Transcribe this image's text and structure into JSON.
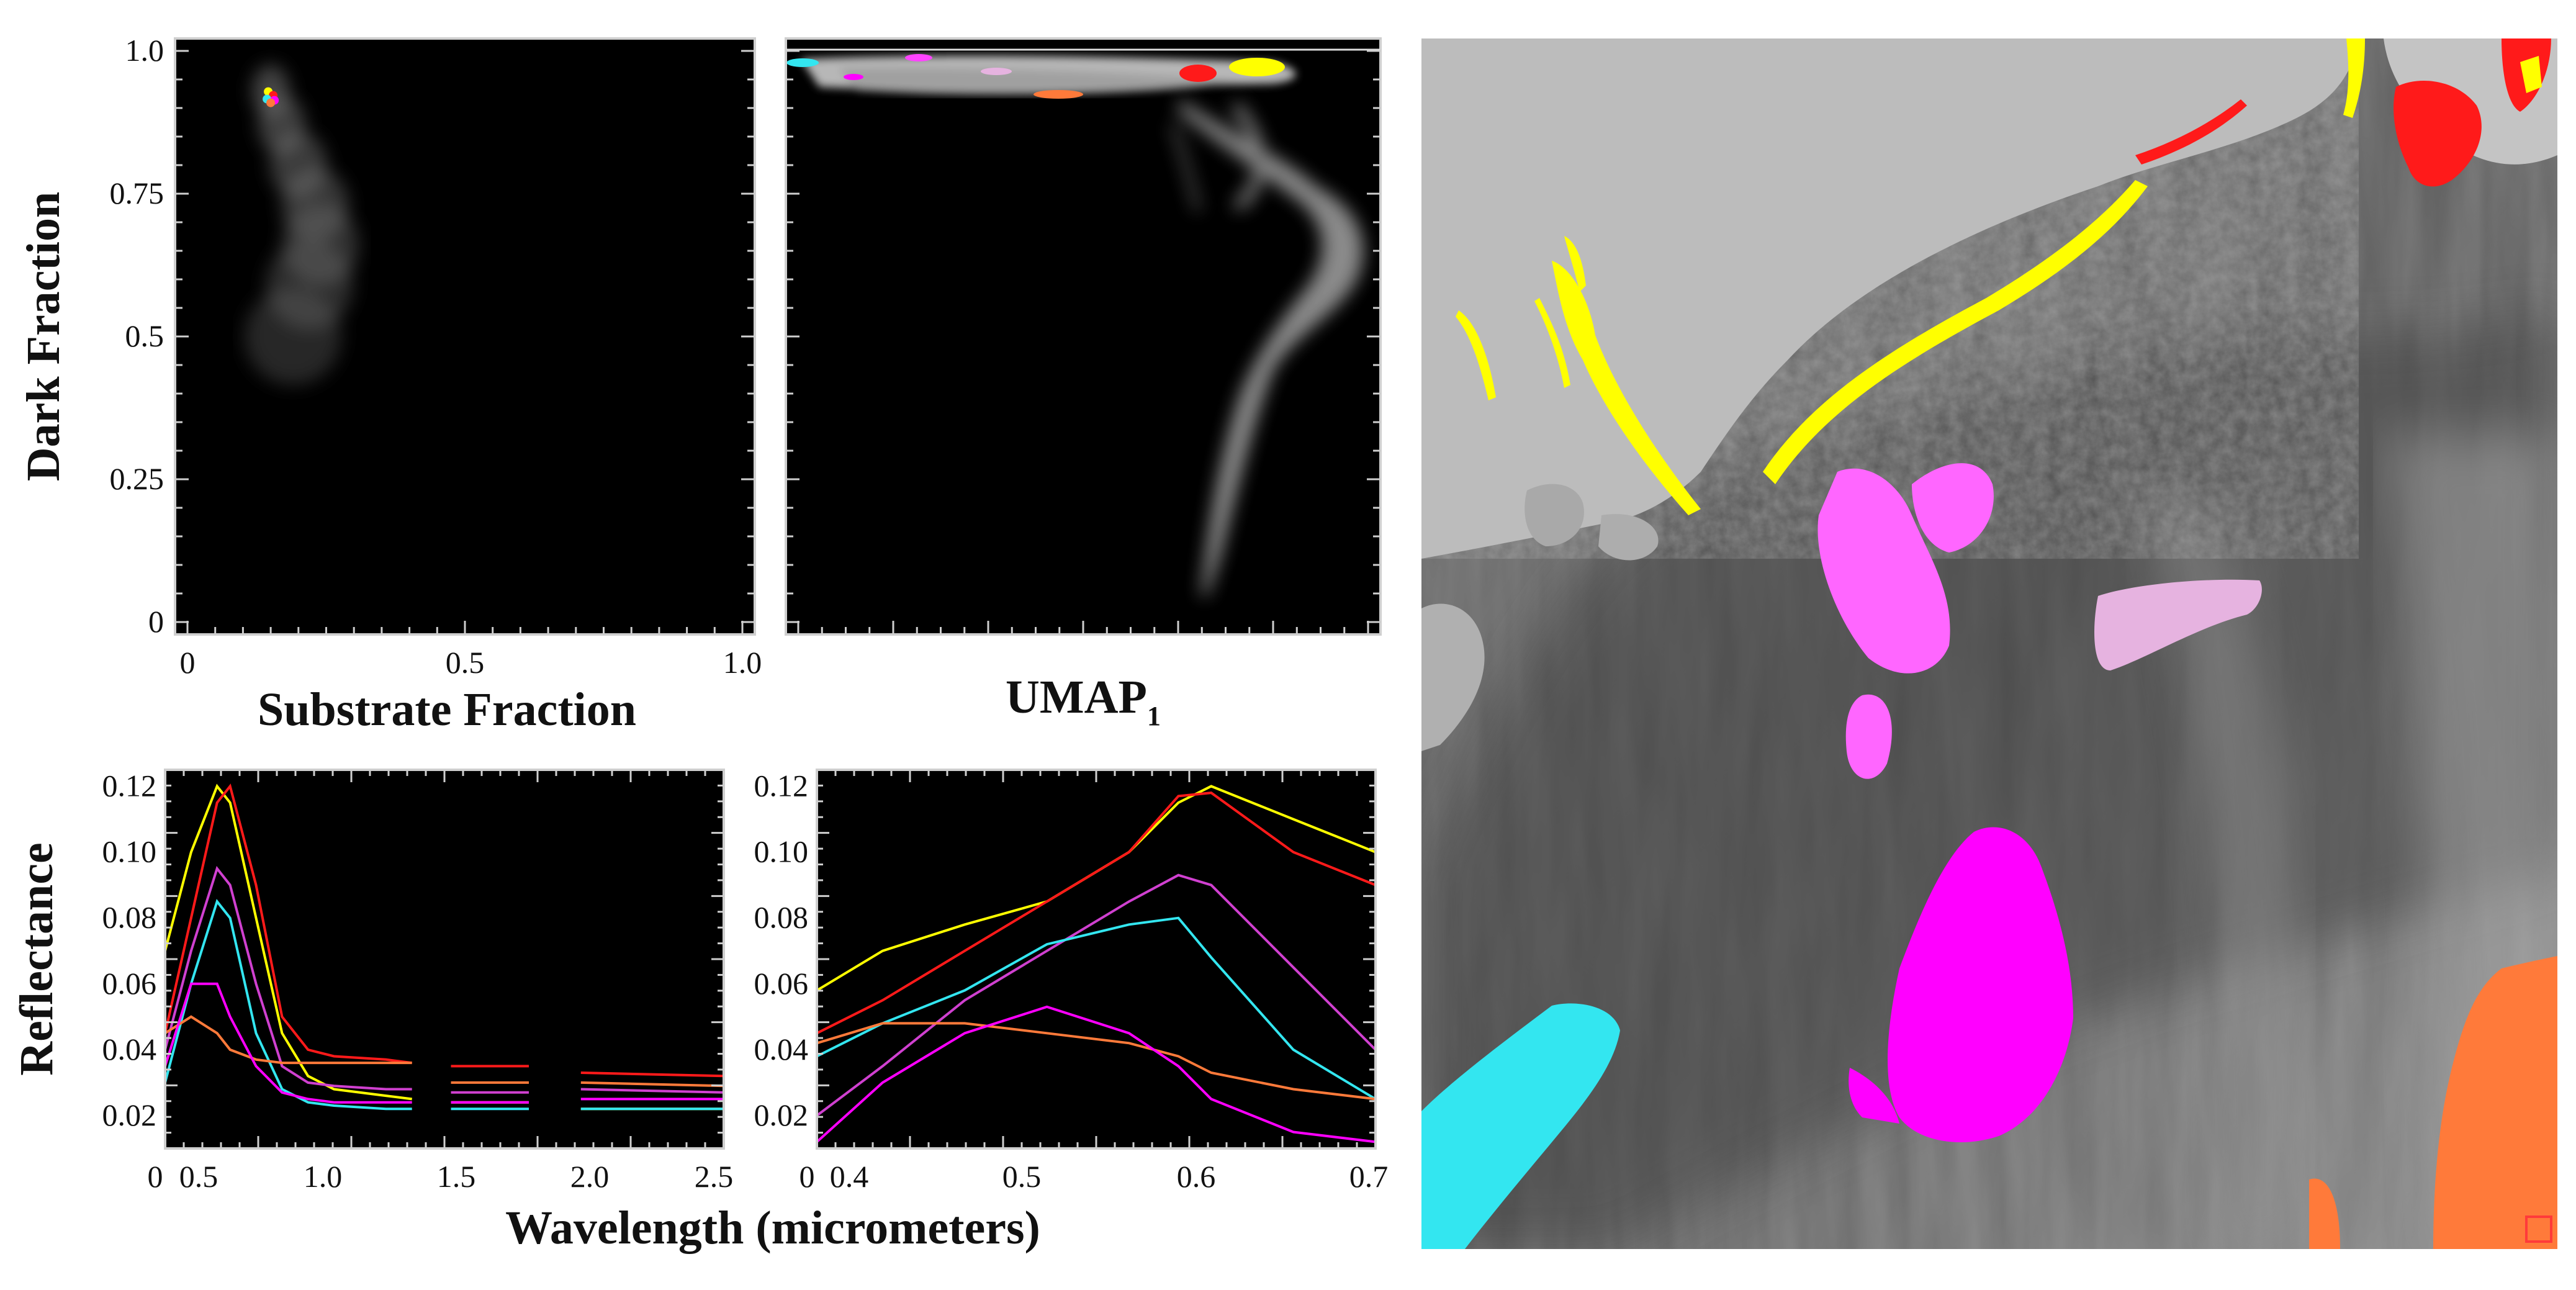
{
  "figure": {
    "panels": {
      "scatter_substrate": {
        "xlabel": "Substrate Fraction",
        "ylabel": "Dark Fraction",
        "xticks": [
          "0",
          "0.5",
          "1.0"
        ],
        "yticks": [
          "0",
          "0.25",
          "0.5",
          "0.75",
          "1.0"
        ]
      },
      "scatter_umap": {
        "xlabel_main": "UMAP",
        "xlabel_sub": "1"
      },
      "spectra_full": {
        "xticks": [
          "0",
          "0.5",
          "1.0",
          "1.5",
          "2.0",
          "2.5"
        ],
        "yticks": [
          "0.02",
          "0.04",
          "0.06",
          "0.08",
          "0.10",
          "0.12"
        ],
        "ylabel": "Reflectance"
      },
      "spectra_visible": {
        "xticks": [
          "0",
          "0.4",
          "0.5",
          "0.6",
          "0.7"
        ],
        "yticks": [
          "0.02",
          "0.04",
          "0.06",
          "0.08",
          "0.10",
          "0.12"
        ]
      },
      "shared_xlabel": "Wavelength (micrometers)"
    },
    "class_colors": {
      "yellow": "#ffff00",
      "red": "#ff1a1a",
      "magenta": "#ff00ff",
      "pink": "#e6b3e0",
      "orange": "#ff7a3a",
      "cyan": "#33e6f0",
      "light_magenta": "#d040d0"
    }
  },
  "chart_data": [
    {
      "type": "scatter",
      "xlabel": "Substrate Fraction",
      "ylabel": "Dark Fraction",
      "xlim": [
        0,
        1.0
      ],
      "ylim": [
        0,
        1.0
      ],
      "grid": false,
      "density_cloud": [
        {
          "x": 0.15,
          "y": 0.93
        },
        {
          "x": 0.17,
          "y": 0.87
        },
        {
          "x": 0.2,
          "y": 0.8
        },
        {
          "x": 0.23,
          "y": 0.73
        },
        {
          "x": 0.24,
          "y": 0.66
        },
        {
          "x": 0.22,
          "y": 0.59
        },
        {
          "x": 0.19,
          "y": 0.5
        }
      ],
      "class_cluster": {
        "x": 0.15,
        "y": 0.92
      }
    },
    {
      "type": "scatter",
      "xlabel": "UMAP1",
      "ylabel": "",
      "ylim": [
        0,
        1.0
      ],
      "grid": false,
      "note_classes_top": [
        "cyan",
        "magenta",
        "pink",
        "orange",
        "red",
        "yellow"
      ]
    },
    {
      "type": "line",
      "xlabel": "Wavelength (micrometers)",
      "ylabel": "Reflectance",
      "xlim": [
        0.35,
        2.5
      ],
      "ylim": [
        0.01,
        0.125
      ],
      "grid": false,
      "series": [
        {
          "color": "yellow",
          "x": [
            0.35,
            0.45,
            0.55,
            0.6,
            0.7,
            0.8,
            0.9,
            1.0,
            1.2,
            1.3
          ],
          "y": [
            0.07,
            0.1,
            0.12,
            0.115,
            0.08,
            0.045,
            0.032,
            0.028,
            0.026,
            0.025
          ],
          "x2": [
            1.45,
            1.75
          ],
          "y2": [
            0.024,
            0.024
          ],
          "x3": [
            1.95,
            2.5
          ],
          "y3": [
            0.022,
            0.022
          ]
        },
        {
          "color": "red",
          "x": [
            0.35,
            0.45,
            0.55,
            0.6,
            0.7,
            0.8,
            0.9,
            1.0,
            1.2,
            1.3
          ],
          "y": [
            0.045,
            0.08,
            0.115,
            0.12,
            0.09,
            0.05,
            0.04,
            0.038,
            0.037,
            0.036
          ],
          "x2": [
            1.45,
            1.75
          ],
          "y2": [
            0.035,
            0.035
          ],
          "x3": [
            1.95,
            2.5
          ],
          "y3": [
            0.033,
            0.032
          ]
        },
        {
          "color": "light_magenta",
          "x": [
            0.35,
            0.45,
            0.55,
            0.6,
            0.7,
            0.8,
            0.9,
            1.0,
            1.2,
            1.3
          ],
          "y": [
            0.04,
            0.07,
            0.095,
            0.09,
            0.06,
            0.035,
            0.03,
            0.029,
            0.028,
            0.028
          ],
          "x2": [
            1.45,
            1.75
          ],
          "y2": [
            0.027,
            0.027
          ],
          "x3": [
            1.95,
            2.5
          ],
          "y3": [
            0.028,
            0.027
          ]
        },
        {
          "color": "cyan",
          "x": [
            0.35,
            0.45,
            0.55,
            0.6,
            0.7,
            0.8,
            0.9,
            1.0,
            1.2,
            1.3
          ],
          "y": [
            0.03,
            0.06,
            0.085,
            0.08,
            0.045,
            0.028,
            0.024,
            0.023,
            0.022,
            0.022
          ],
          "x2": [
            1.45,
            1.75
          ],
          "y2": [
            0.022,
            0.022
          ],
          "x3": [
            1.95,
            2.5
          ],
          "y3": [
            0.022,
            0.022
          ]
        },
        {
          "color": "orange",
          "x": [
            0.35,
            0.45,
            0.55,
            0.6,
            0.7,
            0.8,
            0.9,
            1.0,
            1.2,
            1.3
          ],
          "y": [
            0.045,
            0.05,
            0.045,
            0.04,
            0.037,
            0.036,
            0.036,
            0.036,
            0.036,
            0.036
          ],
          "x2": [
            1.45,
            1.75
          ],
          "y2": [
            0.03,
            0.03
          ],
          "x3": [
            1.95,
            2.5
          ],
          "y3": [
            0.03,
            0.029
          ]
        },
        {
          "color": "magenta",
          "x": [
            0.35,
            0.45,
            0.55,
            0.6,
            0.7,
            0.8,
            0.9,
            1.0,
            1.2,
            1.3
          ],
          "y": [
            0.035,
            0.06,
            0.06,
            0.05,
            0.035,
            0.027,
            0.025,
            0.024,
            0.024,
            0.024
          ],
          "x2": [
            1.45,
            1.75
          ],
          "y2": [
            0.024,
            0.024
          ],
          "x3": [
            1.95,
            2.5
          ],
          "y3": [
            0.025,
            0.025
          ]
        }
      ]
    },
    {
      "type": "line",
      "xlabel": "Wavelength (micrometers)",
      "ylabel": "",
      "xlim": [
        0.36,
        0.7
      ],
      "ylim": [
        0.01,
        0.125
      ],
      "grid": false,
      "series": [
        {
          "color": "yellow",
          "x": [
            0.36,
            0.4,
            0.45,
            0.5,
            0.55,
            0.58,
            0.6,
            0.65,
            0.7
          ],
          "y": [
            0.058,
            0.07,
            0.078,
            0.085,
            0.1,
            0.115,
            0.12,
            0.11,
            0.1
          ]
        },
        {
          "color": "red",
          "x": [
            0.36,
            0.4,
            0.45,
            0.5,
            0.55,
            0.58,
            0.6,
            0.65,
            0.7
          ],
          "y": [
            0.045,
            0.055,
            0.07,
            0.085,
            0.1,
            0.117,
            0.118,
            0.1,
            0.09
          ]
        },
        {
          "color": "light_magenta",
          "x": [
            0.36,
            0.4,
            0.45,
            0.5,
            0.55,
            0.58,
            0.6,
            0.65,
            0.7
          ],
          "y": [
            0.02,
            0.035,
            0.055,
            0.07,
            0.085,
            0.093,
            0.09,
            0.065,
            0.04
          ]
        },
        {
          "color": "cyan",
          "x": [
            0.36,
            0.4,
            0.45,
            0.5,
            0.55,
            0.58,
            0.6,
            0.65,
            0.7
          ],
          "y": [
            0.038,
            0.048,
            0.058,
            0.072,
            0.078,
            0.08,
            0.068,
            0.04,
            0.025
          ]
        },
        {
          "color": "orange",
          "x": [
            0.36,
            0.4,
            0.45,
            0.5,
            0.55,
            0.58,
            0.6,
            0.65,
            0.7
          ],
          "y": [
            0.042,
            0.048,
            0.048,
            0.045,
            0.042,
            0.038,
            0.033,
            0.028,
            0.025
          ]
        },
        {
          "color": "magenta",
          "x": [
            0.36,
            0.4,
            0.45,
            0.5,
            0.55,
            0.58,
            0.6,
            0.65,
            0.7
          ],
          "y": [
            0.012,
            0.03,
            0.045,
            0.053,
            0.045,
            0.035,
            0.025,
            0.015,
            0.012
          ]
        }
      ]
    }
  ]
}
